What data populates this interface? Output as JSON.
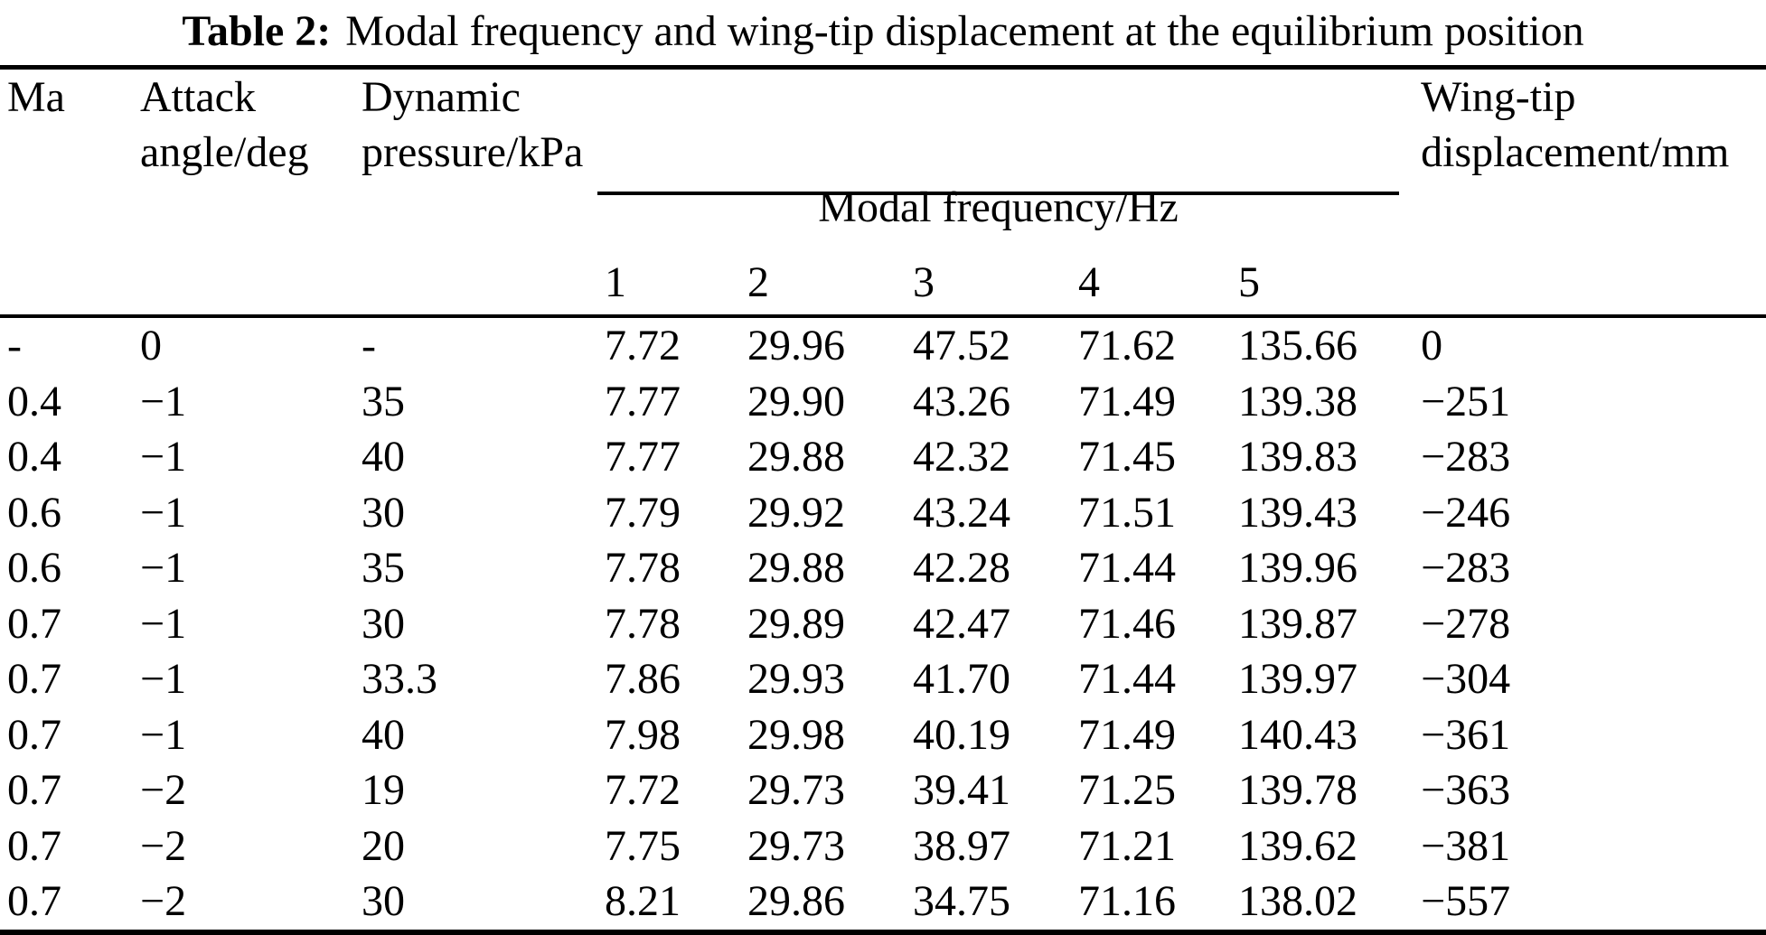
{
  "caption": {
    "label": "Table 2:",
    "text": "Modal frequency and wing-tip displacement at the equilibrium position"
  },
  "table": {
    "headers": {
      "ma": "Ma",
      "attack_angle": "Attack\nangle/deg",
      "dynamic_pressure": "Dynamic\npressure/kPa",
      "modal_frequency_group": "Modal frequency/Hz",
      "modal_subcolumns": [
        "1",
        "2",
        "3",
        "4",
        "5"
      ],
      "wingtip_displacement": "Wing-tip\ndisplacement/mm"
    },
    "column_keys": [
      "ma",
      "attack-angle",
      "dynamic-pressure",
      "mode-1",
      "mode-2",
      "mode-3",
      "mode-4",
      "mode-5",
      "wingtip-displacement"
    ],
    "rows": [
      [
        "-",
        "0",
        "-",
        "7.72",
        "29.96",
        "47.52",
        "71.62",
        "135.66",
        "0"
      ],
      [
        "0.4",
        "−1",
        "35",
        "7.77",
        "29.90",
        "43.26",
        "71.49",
        "139.38",
        "−251"
      ],
      [
        "0.4",
        "−1",
        "40",
        "7.77",
        "29.88",
        "42.32",
        "71.45",
        "139.83",
        "−283"
      ],
      [
        "0.6",
        "−1",
        "30",
        "7.79",
        "29.92",
        "43.24",
        "71.51",
        "139.43",
        "−246"
      ],
      [
        "0.6",
        "−1",
        "35",
        "7.78",
        "29.88",
        "42.28",
        "71.44",
        "139.96",
        "−283"
      ],
      [
        "0.7",
        "−1",
        "30",
        "7.78",
        "29.89",
        "42.47",
        "71.46",
        "139.87",
        "−278"
      ],
      [
        "0.7",
        "−1",
        "33.3",
        "7.86",
        "29.93",
        "41.70",
        "71.44",
        "139.97",
        "−304"
      ],
      [
        "0.7",
        "−1",
        "40",
        "7.98",
        "29.98",
        "40.19",
        "71.49",
        "140.43",
        "−361"
      ],
      [
        "0.7",
        "−2",
        "19",
        "7.72",
        "29.73",
        "39.41",
        "71.25",
        "139.78",
        "−363"
      ],
      [
        "0.7",
        "−2",
        "20",
        "7.75",
        "29.73",
        "38.97",
        "71.21",
        "139.62",
        "−381"
      ],
      [
        "0.7",
        "−2",
        "30",
        "8.21",
        "29.86",
        "34.75",
        "71.16",
        "138.02",
        "−557"
      ]
    ]
  },
  "colors": {
    "text": "#000000",
    "background": "#ffffff",
    "rule": "#000000"
  }
}
